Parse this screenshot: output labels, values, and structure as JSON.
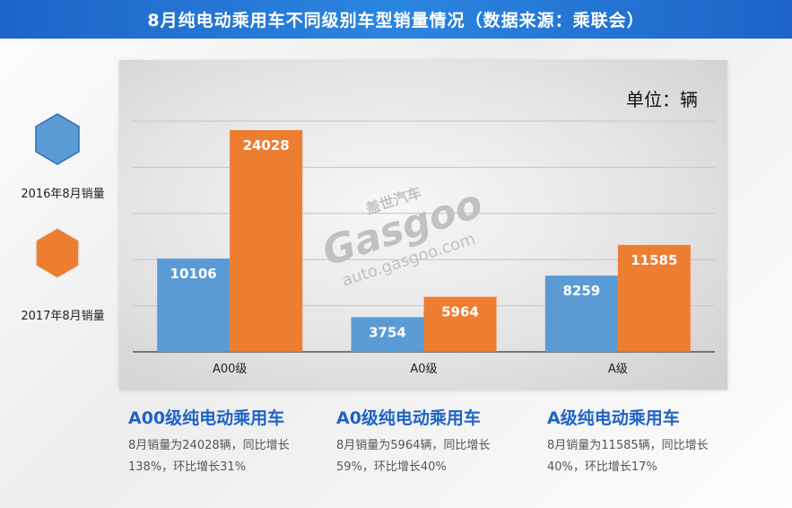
{
  "header": {
    "title": "8月纯电动乘用车不同级别车型销量情况（数据来源：乘联会）"
  },
  "legend": [
    {
      "label": "2016年8月销量",
      "color": "#5b9bd5"
    },
    {
      "label": "2017年8月销量",
      "color": "#ed7d31"
    }
  ],
  "unit": "单位：辆",
  "watermark": {
    "brand": "Gasgoo",
    "url": "auto.gasgoo.com",
    "cn": "盖世汽车"
  },
  "chart_data": {
    "type": "bar",
    "categories": [
      "A00级",
      "A0级",
      "A级"
    ],
    "series": [
      {
        "name": "2016年8月销量",
        "values": [
          10106,
          3754,
          8259
        ],
        "color": "#5b9bd5"
      },
      {
        "name": "2017年8月销量",
        "values": [
          24028,
          5964,
          11585
        ],
        "color": "#ed7d31"
      }
    ],
    "ylim": [
      0,
      30000
    ],
    "grid": true,
    "legend_position": "left"
  },
  "summaries": [
    {
      "title": "A00级纯电动乘用车",
      "desc": "8月销量为24028辆，同比增长138%，环比增长31%"
    },
    {
      "title": "A0级纯电动乘用车",
      "desc": "8月销量为5964辆，同比增长59%，环比增长40%"
    },
    {
      "title": "A级纯电动乘用车",
      "desc": "8月销量为11585辆，同比增长40%，环比增长17%"
    }
  ]
}
